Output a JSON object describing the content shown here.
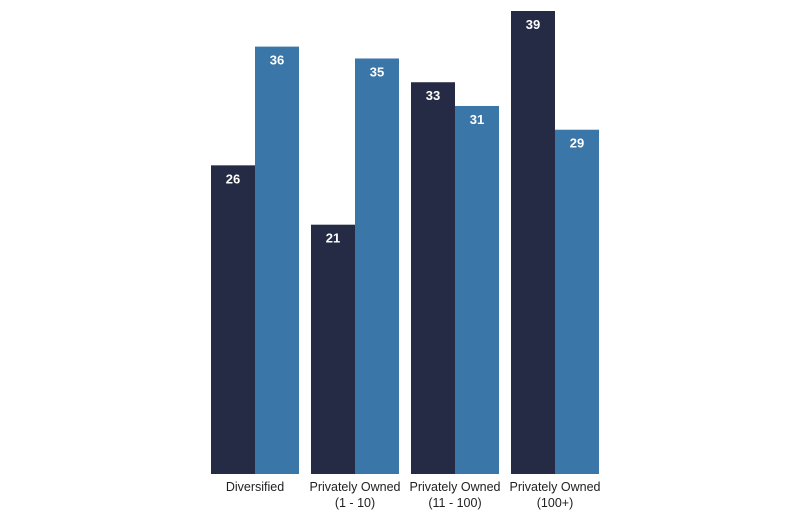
{
  "chart_data": {
    "type": "bar",
    "title": "",
    "xlabel": "",
    "ylabel": "",
    "ylim": [
      0,
      39
    ],
    "grid": false,
    "legend": "none",
    "categories": [
      [
        "Diversified"
      ],
      [
        "Privately Owned",
        "(1 - 10)"
      ],
      [
        "Privately Owned",
        "(11 - 100)"
      ],
      [
        "Privately Owned",
        "(100+)"
      ]
    ],
    "series": [
      {
        "color": "#252b45",
        "values": [
          26,
          21,
          33,
          39
        ]
      },
      {
        "color": "#3a76a8",
        "values": [
          36,
          35,
          31,
          29
        ]
      }
    ]
  }
}
